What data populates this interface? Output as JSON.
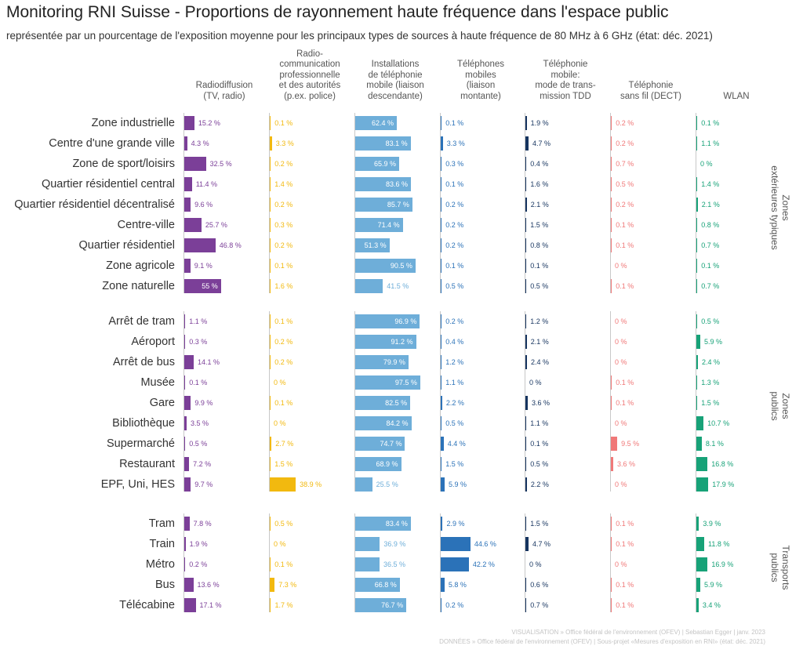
{
  "title": "Monitoring RNI Suisse - Proportions de rayonnement haute fréquence dans l'espace public",
  "subtitle": "représentée par un pourcentage de l'exposition moyenne pour les principaux types de sources à haute fréquence de 80 MHz à 6 GHz (état: déc. 2021)",
  "footer": {
    "line1": "VISUALISATION » Office fédéral de l'environnement (OFEV) | Sebastian Egger | janv. 2023",
    "line2": "DONNÉES » Office fédéral de l'environnement (OFEV) | Sous-projet «Mesures d'exposition en RNI» (état: déc. 2021)"
  },
  "chart_data": {
    "type": "bar",
    "unit": "%",
    "columns": [
      {
        "name": "Radiodiffusion\n(TV, radio)",
        "color": "#7b3f98"
      },
      {
        "name": "Radio-\ncommunication\nprofessionnelle\net des autorités\n(p.ex. police)",
        "color": "#f2b90f"
      },
      {
        "name": "Installations\nde téléphonie\nmobile (liaison\ndescendante)",
        "color": "#6eaed9"
      },
      {
        "name": "Téléphones\nmobiles\n(liaison\nmontante)",
        "color": "#2b72b8"
      },
      {
        "name": "Téléphonie\nmobile:\nmode de trans-\nmission TDD",
        "color": "#16345f"
      },
      {
        "name": "Téléphonie\nsans fil (DECT)",
        "color": "#f07878"
      },
      {
        "name": "WLAN",
        "color": "#17a278"
      }
    ],
    "groups": [
      {
        "name": "Zones\nextérieures typiques",
        "rows": [
          {
            "label": "Zone industrielle",
            "values": [
              15.2,
              0.1,
              62.4,
              0.1,
              1.9,
              0.2,
              0.1
            ]
          },
          {
            "label": "Centre d'une grande ville",
            "values": [
              4.3,
              3.3,
              83.1,
              3.3,
              4.7,
              0.2,
              1.1
            ]
          },
          {
            "label": "Zone de sport/loisirs",
            "values": [
              32.5,
              0.2,
              65.9,
              0.3,
              0.4,
              0.7,
              0
            ]
          },
          {
            "label": "Quartier résidentiel central",
            "values": [
              11.4,
              1.4,
              83.6,
              0.1,
              1.6,
              0.5,
              1.4
            ]
          },
          {
            "label": "Quartier résidentiel décentralisé",
            "values": [
              9.6,
              0.2,
              85.7,
              0.2,
              2.1,
              0.2,
              2.1
            ]
          },
          {
            "label": "Centre-ville",
            "values": [
              25.7,
              0.3,
              71.4,
              0.2,
              1.5,
              0.1,
              0.8
            ]
          },
          {
            "label": "Quartier résidentiel",
            "values": [
              46.8,
              0.2,
              51.3,
              0.2,
              0.8,
              0.1,
              0.7
            ]
          },
          {
            "label": "Zone agricole",
            "values": [
              9.1,
              0.1,
              90.5,
              0.1,
              0.1,
              0,
              0.1
            ]
          },
          {
            "label": "Zone naturelle",
            "values": [
              55,
              1.6,
              41.5,
              0.5,
              0.5,
              0.1,
              0.7
            ]
          }
        ]
      },
      {
        "name": "Zones\npublics",
        "rows": [
          {
            "label": "Arrêt de tram",
            "values": [
              1.1,
              0.1,
              96.9,
              0.2,
              1.2,
              0,
              0.5
            ]
          },
          {
            "label": "Aéroport",
            "values": [
              0.3,
              0.2,
              91.2,
              0.4,
              2.1,
              0,
              5.9
            ]
          },
          {
            "label": "Arrêt de bus",
            "values": [
              14.1,
              0.2,
              79.9,
              1.2,
              2.4,
              0,
              2.4
            ]
          },
          {
            "label": "Musée",
            "values": [
              0.1,
              0,
              97.5,
              1.1,
              0,
              0.1,
              1.3
            ]
          },
          {
            "label": "Gare",
            "values": [
              9.9,
              0.1,
              82.5,
              2.2,
              3.6,
              0.1,
              1.5
            ]
          },
          {
            "label": "Bibliothèque",
            "values": [
              3.5,
              0,
              84.2,
              0.5,
              1.1,
              0,
              10.7
            ]
          },
          {
            "label": "Supermarché",
            "values": [
              0.5,
              2.7,
              74.7,
              4.4,
              0.1,
              9.5,
              8.1
            ]
          },
          {
            "label": "Restaurant",
            "values": [
              7.2,
              1.5,
              68.9,
              1.5,
              0.5,
              3.6,
              16.8
            ]
          },
          {
            "label": "EPF, Uni, HES",
            "values": [
              9.7,
              38.9,
              25.5,
              5.9,
              2.2,
              0,
              17.9
            ]
          }
        ]
      },
      {
        "name": "Transports\npublics",
        "rows": [
          {
            "label": "Tram",
            "values": [
              7.8,
              0.5,
              83.4,
              2.9,
              1.5,
              0.1,
              3.9
            ]
          },
          {
            "label": "Train",
            "values": [
              1.9,
              0,
              36.9,
              44.6,
              4.7,
              0.1,
              11.8
            ]
          },
          {
            "label": "Métro",
            "values": [
              0.2,
              0.1,
              36.5,
              42.2,
              0,
              0,
              16.9
            ]
          },
          {
            "label": "Bus",
            "values": [
              13.6,
              7.3,
              66.8,
              5.8,
              0.6,
              0.1,
              5.9
            ]
          },
          {
            "label": "Télécabine",
            "values": [
              17.1,
              1.7,
              76.7,
              0.2,
              0.7,
              0.1,
              3.4
            ]
          }
        ]
      }
    ]
  }
}
